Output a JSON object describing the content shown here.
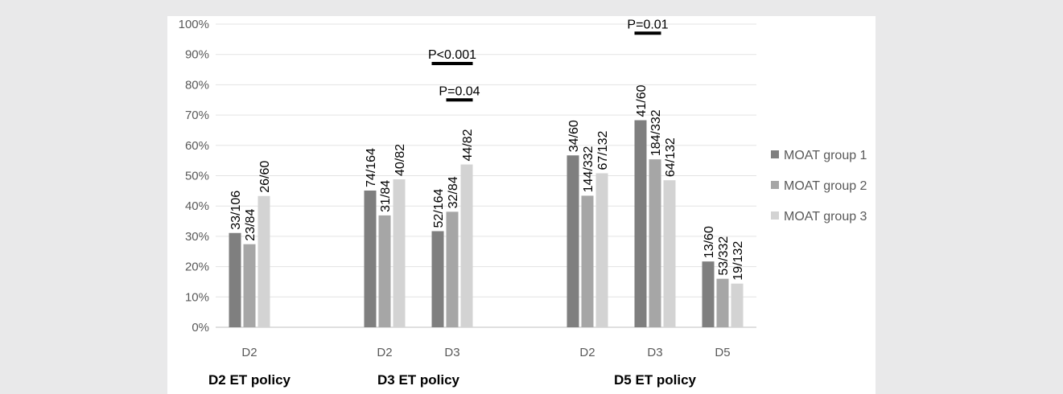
{
  "chart_data": {
    "type": "bar",
    "ylim": [
      0,
      100
    ],
    "y_ticks": [
      "0%",
      "10%",
      "20%",
      "30%",
      "40%",
      "50%",
      "60%",
      "70%",
      "80%",
      "90%",
      "100%"
    ],
    "grid": true,
    "legend_position": "right",
    "series": [
      {
        "name": "MOAT group 1",
        "color": "#7f7f7f"
      },
      {
        "name": "MOAT group 2",
        "color": "#a6a6a6"
      },
      {
        "name": "MOAT group 3",
        "color": "#d3d3d3"
      }
    ],
    "groups": [
      {
        "label": "D2 ET policy",
        "categories": [
          {
            "label": "D2",
            "values": [
              31.1,
              27.4,
              43.3
            ],
            "data_labels": [
              "33/106",
              "23/84",
              "26/60"
            ]
          }
        ]
      },
      {
        "label": "D3 ET policy",
        "categories": [
          {
            "label": "D2",
            "values": [
              45.1,
              36.9,
              48.8
            ],
            "data_labels": [
              "74/164",
              "31/84",
              "40/82"
            ]
          },
          {
            "label": "D3",
            "values": [
              31.7,
              38.1,
              53.7
            ],
            "data_labels": [
              "52/164",
              "32/84",
              "44/82"
            ]
          }
        ]
      },
      {
        "label": "D5 ET policy",
        "categories": [
          {
            "label": "D2",
            "values": [
              56.7,
              43.4,
              50.8
            ],
            "data_labels": [
              "34/60",
              "144/332",
              "67/132"
            ]
          },
          {
            "label": "D3",
            "values": [
              68.3,
              55.4,
              48.5
            ],
            "data_labels": [
              "41/60",
              "184/332",
              "64/132"
            ]
          },
          {
            "label": "D5",
            "values": [
              21.7,
              16.0,
              14.4
            ],
            "data_labels": [
              "13/60",
              "53/332",
              "19/132"
            ]
          }
        ]
      }
    ],
    "annotations": [
      {
        "text": "P<0.001",
        "group": 1,
        "category": 1,
        "from_series": 0,
        "to_series": 2,
        "y": 87
      },
      {
        "text": "P=0.04",
        "group": 1,
        "category": 1,
        "from_series": 1,
        "to_series": 2,
        "y": 75
      },
      {
        "text": "P=0.01",
        "group": 2,
        "category": 1,
        "from_series": 0,
        "to_series": 1,
        "y": 97
      }
    ]
  }
}
